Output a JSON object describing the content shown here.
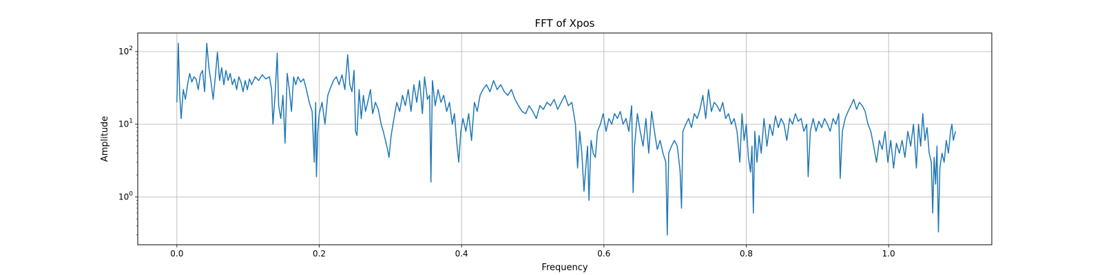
{
  "chart_data": {
    "type": "line",
    "title": "FFT of Xpos",
    "xlabel": "Frequency",
    "ylabel": "Amplitude",
    "xlim": [
      -0.055,
      1.145
    ],
    "ylim": [
      0.22,
      180
    ],
    "yscale": "log",
    "grid": true,
    "line_color": "#1f77b4",
    "x_ticks": [
      {
        "value": 0.0,
        "label": "0.0"
      },
      {
        "value": 0.2,
        "label": "0.2"
      },
      {
        "value": 0.4,
        "label": "0.4"
      },
      {
        "value": 0.6,
        "label": "0.6"
      },
      {
        "value": 0.8,
        "label": "0.8"
      },
      {
        "value": 1.0,
        "label": "1.0"
      }
    ],
    "y_ticks": [
      {
        "value": 1,
        "base": "10",
        "exp": "0"
      },
      {
        "value": 10,
        "base": "10",
        "exp": "1"
      },
      {
        "value": 100,
        "base": "10",
        "exp": "2"
      }
    ],
    "series": [
      {
        "points": [
          [
            0.0,
            20
          ],
          [
            0.002,
            130
          ],
          [
            0.004,
            25
          ],
          [
            0.006,
            12
          ],
          [
            0.009,
            30
          ],
          [
            0.012,
            22
          ],
          [
            0.015,
            35
          ],
          [
            0.018,
            50
          ],
          [
            0.021,
            38
          ],
          [
            0.024,
            45
          ],
          [
            0.027,
            42
          ],
          [
            0.03,
            30
          ],
          [
            0.033,
            48
          ],
          [
            0.036,
            55
          ],
          [
            0.039,
            28
          ],
          [
            0.042,
            130
          ],
          [
            0.045,
            60
          ],
          [
            0.048,
            38
          ],
          [
            0.051,
            22
          ],
          [
            0.054,
            45
          ],
          [
            0.057,
            98
          ],
          [
            0.06,
            40
          ],
          [
            0.063,
            60
          ],
          [
            0.066,
            35
          ],
          [
            0.069,
            55
          ],
          [
            0.072,
            40
          ],
          [
            0.075,
            50
          ],
          [
            0.078,
            35
          ],
          [
            0.081,
            42
          ],
          [
            0.084,
            30
          ],
          [
            0.087,
            45
          ],
          [
            0.09,
            38
          ],
          [
            0.093,
            28
          ],
          [
            0.096,
            40
          ],
          [
            0.099,
            30
          ],
          [
            0.102,
            42
          ],
          [
            0.105,
            35
          ],
          [
            0.11,
            45
          ],
          [
            0.115,
            40
          ],
          [
            0.12,
            48
          ],
          [
            0.125,
            42
          ],
          [
            0.13,
            45
          ],
          [
            0.133,
            30
          ],
          [
            0.135,
            10
          ],
          [
            0.138,
            25
          ],
          [
            0.141,
            95
          ],
          [
            0.143,
            18
          ],
          [
            0.146,
            12
          ],
          [
            0.149,
            25
          ],
          [
            0.152,
            5.5
          ],
          [
            0.155,
            50
          ],
          [
            0.158,
            30
          ],
          [
            0.161,
            15
          ],
          [
            0.164,
            45
          ],
          [
            0.167,
            35
          ],
          [
            0.17,
            45
          ],
          [
            0.174,
            38
          ],
          [
            0.178,
            42
          ],
          [
            0.182,
            30
          ],
          [
            0.186,
            20
          ],
          [
            0.19,
            15
          ],
          [
            0.193,
            3.0
          ],
          [
            0.195,
            20
          ],
          [
            0.196,
            1.9
          ],
          [
            0.198,
            8
          ],
          [
            0.2,
            14
          ],
          [
            0.204,
            20
          ],
          [
            0.208,
            10
          ],
          [
            0.212,
            25
          ],
          [
            0.216,
            32
          ],
          [
            0.22,
            40
          ],
          [
            0.224,
            45
          ],
          [
            0.228,
            35
          ],
          [
            0.232,
            48
          ],
          [
            0.236,
            30
          ],
          [
            0.24,
            90
          ],
          [
            0.243,
            35
          ],
          [
            0.246,
            28
          ],
          [
            0.249,
            55
          ],
          [
            0.251,
            8
          ],
          [
            0.253,
            7
          ],
          [
            0.256,
            30
          ],
          [
            0.259,
            12
          ],
          [
            0.262,
            25
          ],
          [
            0.265,
            15
          ],
          [
            0.268,
            20
          ],
          [
            0.272,
            30
          ],
          [
            0.275,
            14
          ],
          [
            0.279,
            20
          ],
          [
            0.283,
            16
          ],
          [
            0.287,
            10
          ],
          [
            0.29,
            8
          ],
          [
            0.293,
            6
          ],
          [
            0.296,
            4.5
          ],
          [
            0.298,
            3.5
          ],
          [
            0.301,
            7
          ],
          [
            0.305,
            12
          ],
          [
            0.309,
            20
          ],
          [
            0.313,
            15
          ],
          [
            0.317,
            25
          ],
          [
            0.321,
            18
          ],
          [
            0.325,
            30
          ],
          [
            0.329,
            15
          ],
          [
            0.333,
            35
          ],
          [
            0.337,
            20
          ],
          [
            0.341,
            40
          ],
          [
            0.345,
            14
          ],
          [
            0.348,
            45
          ],
          [
            0.352,
            22
          ],
          [
            0.355,
            25
          ],
          [
            0.357,
            1.6
          ],
          [
            0.359,
            40
          ],
          [
            0.363,
            18
          ],
          [
            0.367,
            30
          ],
          [
            0.371,
            20
          ],
          [
            0.375,
            25
          ],
          [
            0.379,
            15
          ],
          [
            0.383,
            20
          ],
          [
            0.387,
            10
          ],
          [
            0.39,
            14
          ],
          [
            0.393,
            6
          ],
          [
            0.396,
            3.0
          ],
          [
            0.399,
            8
          ],
          [
            0.402,
            12
          ],
          [
            0.406,
            8
          ],
          [
            0.41,
            14
          ],
          [
            0.414,
            6
          ],
          [
            0.418,
            20
          ],
          [
            0.422,
            15
          ],
          [
            0.426,
            25
          ],
          [
            0.43,
            30
          ],
          [
            0.435,
            35
          ],
          [
            0.44,
            28
          ],
          [
            0.445,
            40
          ],
          [
            0.45,
            30
          ],
          [
            0.455,
            35
          ],
          [
            0.46,
            28
          ],
          [
            0.465,
            25
          ],
          [
            0.47,
            30
          ],
          [
            0.475,
            22
          ],
          [
            0.48,
            18
          ],
          [
            0.485,
            15
          ],
          [
            0.49,
            14
          ],
          [
            0.495,
            18
          ],
          [
            0.5,
            15
          ],
          [
            0.505,
            12
          ],
          [
            0.51,
            18
          ],
          [
            0.515,
            16
          ],
          [
            0.52,
            20
          ],
          [
            0.525,
            18
          ],
          [
            0.53,
            22
          ],
          [
            0.535,
            16
          ],
          [
            0.54,
            20
          ],
          [
            0.545,
            25
          ],
          [
            0.55,
            18
          ],
          [
            0.555,
            20
          ],
          [
            0.56,
            10
          ],
          [
            0.563,
            2.5
          ],
          [
            0.566,
            8
          ],
          [
            0.569,
            4
          ],
          [
            0.572,
            1.2
          ],
          [
            0.574,
            2.2
          ],
          [
            0.577,
            5
          ],
          [
            0.579,
            0.9
          ],
          [
            0.582,
            6
          ],
          [
            0.585,
            4
          ],
          [
            0.588,
            3.5
          ],
          [
            0.591,
            8
          ],
          [
            0.595,
            10
          ],
          [
            0.599,
            14
          ],
          [
            0.603,
            8
          ],
          [
            0.607,
            12
          ],
          [
            0.611,
            10
          ],
          [
            0.615,
            14
          ],
          [
            0.619,
            12
          ],
          [
            0.623,
            15
          ],
          [
            0.627,
            10
          ],
          [
            0.631,
            12
          ],
          [
            0.635,
            8
          ],
          [
            0.639,
            18
          ],
          [
            0.641,
            1.15
          ],
          [
            0.643,
            5
          ],
          [
            0.647,
            14
          ],
          [
            0.651,
            8
          ],
          [
            0.655,
            5
          ],
          [
            0.659,
            12
          ],
          [
            0.663,
            4
          ],
          [
            0.667,
            15
          ],
          [
            0.671,
            8
          ],
          [
            0.675,
            4.5
          ],
          [
            0.679,
            6
          ],
          [
            0.683,
            4
          ],
          [
            0.687,
            3
          ],
          [
            0.689,
            0.3
          ],
          [
            0.691,
            4
          ],
          [
            0.695,
            5
          ],
          [
            0.699,
            6
          ],
          [
            0.703,
            5
          ],
          [
            0.707,
            2.3
          ],
          [
            0.709,
            0.7
          ],
          [
            0.711,
            8
          ],
          [
            0.715,
            10
          ],
          [
            0.719,
            12
          ],
          [
            0.723,
            9
          ],
          [
            0.727,
            14
          ],
          [
            0.731,
            12
          ],
          [
            0.735,
            16
          ],
          [
            0.739,
            25
          ],
          [
            0.743,
            12
          ],
          [
            0.747,
            30
          ],
          [
            0.751,
            15
          ],
          [
            0.755,
            20
          ],
          [
            0.759,
            18
          ],
          [
            0.763,
            15
          ],
          [
            0.767,
            20
          ],
          [
            0.771,
            12
          ],
          [
            0.775,
            14
          ],
          [
            0.779,
            10
          ],
          [
            0.783,
            12
          ],
          [
            0.787,
            8
          ],
          [
            0.791,
            3
          ],
          [
            0.794,
            14
          ],
          [
            0.797,
            6
          ],
          [
            0.8,
            10
          ],
          [
            0.803,
            3.5
          ],
          [
            0.806,
            2.2
          ],
          [
            0.808,
            5
          ],
          [
            0.81,
            0.6
          ],
          [
            0.812,
            8
          ],
          [
            0.815,
            3
          ],
          [
            0.818,
            7
          ],
          [
            0.821,
            4
          ],
          [
            0.825,
            12
          ],
          [
            0.829,
            5
          ],
          [
            0.833,
            10
          ],
          [
            0.837,
            7
          ],
          [
            0.841,
            13
          ],
          [
            0.845,
            9
          ],
          [
            0.849,
            12
          ],
          [
            0.853,
            10
          ],
          [
            0.857,
            6
          ],
          [
            0.861,
            12
          ],
          [
            0.865,
            10
          ],
          [
            0.869,
            14
          ],
          [
            0.873,
            11
          ],
          [
            0.877,
            12
          ],
          [
            0.881,
            8
          ],
          [
            0.885,
            10
          ],
          [
            0.887,
            1.9
          ],
          [
            0.89,
            8
          ],
          [
            0.894,
            12
          ],
          [
            0.898,
            8
          ],
          [
            0.902,
            11
          ],
          [
            0.906,
            9
          ],
          [
            0.91,
            12
          ],
          [
            0.914,
            10
          ],
          [
            0.918,
            8
          ],
          [
            0.922,
            12
          ],
          [
            0.926,
            10
          ],
          [
            0.93,
            14
          ],
          [
            0.932,
            1.8
          ],
          [
            0.935,
            8
          ],
          [
            0.939,
            12
          ],
          [
            0.943,
            15
          ],
          [
            0.947,
            18
          ],
          [
            0.951,
            22
          ],
          [
            0.955,
            16
          ],
          [
            0.959,
            20
          ],
          [
            0.963,
            18
          ],
          [
            0.967,
            15
          ],
          [
            0.971,
            10
          ],
          [
            0.975,
            8
          ],
          [
            0.979,
            5
          ],
          [
            0.983,
            3
          ],
          [
            0.987,
            6
          ],
          [
            0.991,
            4.5
          ],
          [
            0.995,
            8
          ],
          [
            0.999,
            3
          ],
          [
            1.003,
            6
          ],
          [
            1.007,
            2.5
          ],
          [
            1.011,
            5.5
          ],
          [
            1.015,
            4
          ],
          [
            1.019,
            6
          ],
          [
            1.023,
            3.5
          ],
          [
            1.027,
            8
          ],
          [
            1.031,
            5
          ],
          [
            1.035,
            10
          ],
          [
            1.039,
            2.5
          ],
          [
            1.042,
            10
          ],
          [
            1.045,
            5
          ],
          [
            1.048,
            14
          ],
          [
            1.051,
            6
          ],
          [
            1.054,
            9
          ],
          [
            1.057,
            4
          ],
          [
            1.06,
            3
          ],
          [
            1.062,
            0.6
          ],
          [
            1.064,
            3.5
          ],
          [
            1.066,
            1.5
          ],
          [
            1.068,
            5
          ],
          [
            1.07,
            0.33
          ],
          [
            1.072,
            2.5
          ],
          [
            1.075,
            4
          ],
          [
            1.078,
            3
          ],
          [
            1.081,
            6
          ],
          [
            1.084,
            4
          ],
          [
            1.087,
            8
          ],
          [
            1.089,
            10
          ],
          [
            1.091,
            6
          ],
          [
            1.094,
            8
          ]
        ]
      }
    ]
  }
}
